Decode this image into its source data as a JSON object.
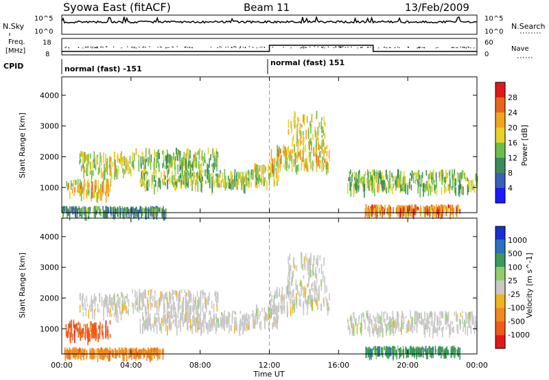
{
  "header": {
    "station": "Syowa East (fitACF)",
    "beam": "Beam 11",
    "date": "13/Feb/2009"
  },
  "noise_panel": {
    "left_label": "N.Sky",
    "right_label": "N.Search",
    "left_ticks": [
      "10^5",
      "10^0"
    ],
    "right_ticks": [
      "10^5",
      "10^0"
    ]
  },
  "freq_panel": {
    "left_label_1": "Freq.",
    "left_label_2": "[MHz]",
    "right_label": "Nave",
    "left_ticks": [
      "18",
      "8"
    ],
    "right_ticks": [
      "60",
      "0"
    ]
  },
  "cpid": {
    "label": "CPID",
    "modes": [
      "normal (fast) -151",
      "normal (fast) 151"
    ]
  },
  "power_colorbar": {
    "label": "Power [dB]",
    "ticks": [
      "4",
      "8",
      "12",
      "16",
      "20",
      "24",
      "28"
    ],
    "colors": [
      "#1a1aff",
      "#3a5fb8",
      "#3d8b5a",
      "#6abf4b",
      "#e6d22a",
      "#f0a51e",
      "#e8661a",
      "#e01a1a"
    ]
  },
  "velocity_colorbar": {
    "label": "Velocity [m s^-1]",
    "ticks": [
      "1000",
      "500",
      "100",
      "25",
      "-25",
      "-100",
      "-500",
      "-1000"
    ],
    "colors": [
      "#1a2fcf",
      "#2d6fc0",
      "#3c9a5a",
      "#8fcf6a",
      "#c8c8c8",
      "#f0b41e",
      "#f08a1e",
      "#f05a1a",
      "#e01a1a"
    ]
  },
  "chart_data": [
    {
      "type": "heatmap",
      "title": "Power [dB]",
      "xlabel": "Time UT",
      "ylabel": "Slant Range [km]",
      "x_ticks": [
        "00:00",
        "04:00",
        "08:00",
        "12:00",
        "16:00",
        "20:00",
        "00:00"
      ],
      "y_ticks": [
        1000,
        2000,
        3000,
        4000
      ],
      "xlim_hours": [
        0,
        24
      ],
      "ylim_km": [
        180,
        4600
      ],
      "echo_bands": [
        {
          "t0": 0.2,
          "t1": 2.8,
          "r0": 800,
          "r1": 1300,
          "level": 0.65
        },
        {
          "t0": 1.0,
          "t1": 4.0,
          "r0": 1500,
          "r1": 2200,
          "level": 0.55
        },
        {
          "t0": 4.0,
          "t1": 9.0,
          "r0": 1700,
          "r1": 2300,
          "level": 0.45
        },
        {
          "t0": 4.5,
          "t1": 11.0,
          "r0": 1100,
          "r1": 1600,
          "level": 0.45
        },
        {
          "t0": 11.0,
          "t1": 12.5,
          "r0": 1200,
          "r1": 1800,
          "level": 0.55
        },
        {
          "t0": 12.0,
          "t1": 15.5,
          "r0": 1700,
          "r1": 2400,
          "level": 0.6
        },
        {
          "t0": 13.0,
          "t1": 15.2,
          "r0": 2400,
          "r1": 3500,
          "level": 0.6
        },
        {
          "t0": 16.5,
          "t1": 24.0,
          "r0": 1000,
          "r1": 1600,
          "level": 0.45
        },
        {
          "t0": 17.5,
          "t1": 23.0,
          "r0": 300,
          "r1": 450,
          "level": 0.8
        },
        {
          "t0": 0.0,
          "t1": 6.0,
          "r0": 250,
          "r1": 400,
          "level": 0.3
        }
      ]
    },
    {
      "type": "heatmap",
      "title": "Velocity [m s^-1]",
      "xlabel": "Time UT",
      "ylabel": "Slant Range [km]",
      "x_ticks": [
        "00:00",
        "04:00",
        "08:00",
        "12:00",
        "16:00",
        "20:00",
        "00:00"
      ],
      "y_ticks": [
        1000,
        2000,
        3000,
        4000
      ],
      "xlim_hours": [
        0,
        24
      ],
      "ylim_km": [
        180,
        4600
      ],
      "echo_bands": [
        {
          "t0": 0.2,
          "t1": 2.8,
          "r0": 800,
          "r1": 1300,
          "value": -300
        },
        {
          "t0": 1.0,
          "t1": 4.0,
          "r0": 1500,
          "r1": 2200,
          "value": 0
        },
        {
          "t0": 4.0,
          "t1": 9.0,
          "r0": 1700,
          "r1": 2300,
          "value": 0
        },
        {
          "t0": 4.5,
          "t1": 11.0,
          "r0": 1100,
          "r1": 1600,
          "value": 0
        },
        {
          "t0": 11.0,
          "t1": 12.5,
          "r0": 1200,
          "r1": 1800,
          "value": 0
        },
        {
          "t0": 12.0,
          "t1": 15.5,
          "r0": 1700,
          "r1": 2400,
          "value": 0
        },
        {
          "t0": 13.0,
          "t1": 15.2,
          "r0": 2400,
          "r1": 3500,
          "value": 0
        },
        {
          "t0": 16.5,
          "t1": 24.0,
          "r0": 1000,
          "r1": 1600,
          "value": 20
        },
        {
          "t0": 17.5,
          "t1": 23.0,
          "r0": 300,
          "r1": 450,
          "value": 150
        },
        {
          "t0": 0.0,
          "t1": 6.0,
          "r0": 250,
          "r1": 400,
          "value": -60
        }
      ]
    }
  ]
}
